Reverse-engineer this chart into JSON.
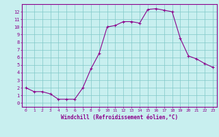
{
  "x": [
    0,
    1,
    2,
    3,
    4,
    5,
    6,
    7,
    8,
    9,
    10,
    11,
    12,
    13,
    14,
    15,
    16,
    17,
    18,
    19,
    20,
    21,
    22,
    23
  ],
  "y": [
    2,
    1.5,
    1.5,
    1.2,
    0.5,
    0.5,
    0.5,
    2,
    4.5,
    6.5,
    10,
    10.2,
    10.7,
    10.7,
    10.5,
    12.3,
    12.4,
    12.2,
    12,
    8.5,
    6.2,
    5.8,
    5.2,
    4.7
  ],
  "line_color": "#8B008B",
  "marker_color": "#8B008B",
  "bg_color": "#C8EFEF",
  "grid_color": "#80C8C8",
  "axis_color": "#8B008B",
  "xlabel": "Windchill (Refroidissement éolien,°C)",
  "xlim": [
    -0.5,
    23.5
  ],
  "ylim": [
    -0.5,
    13.0
  ],
  "xticks": [
    0,
    1,
    2,
    3,
    4,
    5,
    6,
    7,
    8,
    9,
    10,
    11,
    12,
    13,
    14,
    15,
    16,
    17,
    18,
    19,
    20,
    21,
    22,
    23
  ],
  "yticks": [
    0,
    1,
    2,
    3,
    4,
    5,
    6,
    7,
    8,
    9,
    10,
    11,
    12
  ]
}
